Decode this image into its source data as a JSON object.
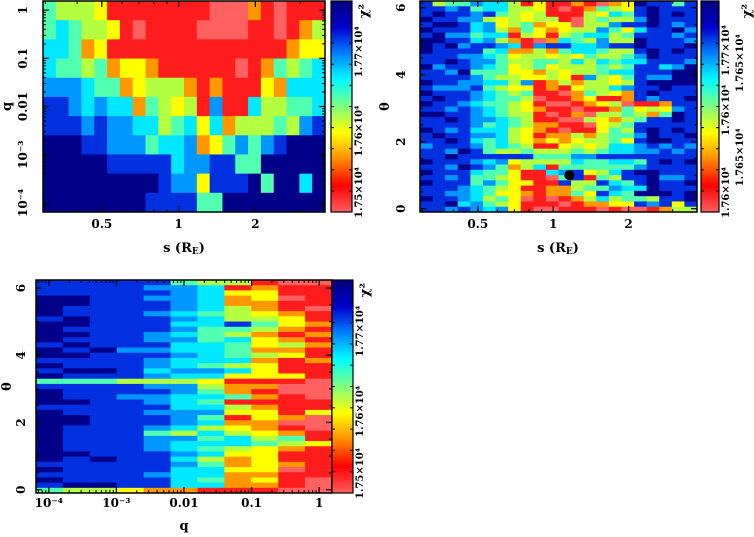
{
  "colormap": [
    "#ff6060",
    "#ff1c1c",
    "#ff9800",
    "#ffff00",
    "#b4ff40",
    "#50ffb0",
    "#00e8ff",
    "#0098ff",
    "#0030e0",
    "#000088"
  ],
  "colorbar_gradient": [
    "#ff6060",
    "#ff0000",
    "#ff8c00",
    "#ffff00",
    "#80ff80",
    "#00ffff",
    "#0080ff",
    "#0000cc",
    "#00007f"
  ],
  "chart_data": [
    {
      "type": "heatmap",
      "xlabel": {
        "text": "s (R",
        "sub": "E",
        "end": ")"
      },
      "ylabel": "q",
      "x_scale": "log",
      "y_scale": "log",
      "xlim": [
        0.294,
        3.75
      ],
      "ylim": [
        6.46e-05,
        1.55
      ],
      "x_ticks": [
        {
          "value": 0.5,
          "label": "0.5"
        },
        {
          "value": 1,
          "label": "1"
        },
        {
          "value": 2,
          "label": "2"
        }
      ],
      "y_ticks": [
        {
          "value": 1,
          "label": "1"
        },
        {
          "value": 0.1,
          "label": "0.1"
        },
        {
          "value": 0.01,
          "label": "0.01"
        },
        {
          "value": 0.001,
          "label": "10⁻³"
        },
        {
          "value": 0.0001,
          "label": "10⁻⁴"
        }
      ],
      "colorbar": {
        "label": "χ²",
        "zlim": [
          17498,
          17764
        ],
        "ticks": [
          {
            "value": 17500,
            "label": "1.75×10⁴"
          },
          {
            "value": 17600,
            "label": "1.76×10⁴"
          },
          {
            "value": 17700,
            "label": "1.77×10⁴"
          }
        ]
      },
      "z_levels": [
        "5444311111111000210111",
        "5654431011110000110124",
        "6652311111111111111233",
        "6554523321111110125456",
        "7776552344421211132666",
        "8876766254341711644556",
        "8887877664563624445478",
        "9998877756672357578999",
        "9999988888677885599999",
        "9999999998773888959969",
        "9999999988885599999999"
      ]
    },
    {
      "type": "heatmap",
      "xlabel": {
        "text": "s (R",
        "sub": "E",
        "end": ")"
      },
      "ylabel": "θ",
      "x_scale": "log",
      "y_scale": "linear",
      "xlim": [
        0.294,
        3.75
      ],
      "ylim": [
        -0.1,
        6.2
      ],
      "x_ticks": [
        {
          "value": 0.5,
          "label": "0.5"
        },
        {
          "value": 1,
          "label": "1"
        },
        {
          "value": 2,
          "label": "2"
        }
      ],
      "y_ticks": [
        {
          "value": 0,
          "label": "0"
        },
        {
          "value": 2,
          "label": "2"
        },
        {
          "value": 4,
          "label": "4"
        },
        {
          "value": 6,
          "label": "6"
        }
      ],
      "marker": {
        "x": 1.16,
        "y": 1.0
      },
      "colorbar": {
        "label": "χ²",
        "zlim": [
          17596,
          17708
        ],
        "ticks": [
          {
            "value": 17600,
            "label": "1.76×10⁴"
          },
          {
            "value": 17625,
            "label": "1.765×10⁴"
          },
          {
            "value": 17650,
            "label": "1.76×10⁴"
          },
          {
            "value": 17675,
            "label": "1.765×10⁴"
          },
          {
            "value": 17700,
            "label": "1.77×10⁴"
          }
        ]
      },
      "z_levels": [
        "8455766413112102398858",
        "8878566443101254389888",
        "8988785434111436589898",
        "9887743434410454479888",
        "8998673452330447889878",
        "9888674253234475368897",
        "8977566143145664588878",
        "9988674210265474498887",
        "9897887617886678898889",
        "9888856224256654489898",
        "8887765344343544579888",
        "8898775445546465668887",
        "9788765345344454588679",
        "8879555332434456688899",
        "8888754433431743587799",
        "9887766471242443489999",
        "8777854331213446788988",
        "9888765451102543289888",
        "8988765540112311287889",
        "9887655431001234011288",
        "8878765432110112534378",
        "9988765441012044542598",
        "8898776541100432458898",
        "8888756542211034588888",
        "9878666432101135489898",
        "8988776431224245579889",
        "8898656432323445389988",
        "7888756541134346678787",
        "8879854454445456677878",
        "8898888885557788888888",
        "9888767344446556658989",
        "8879875246155555578888",
        "9888655311678346899888",
        "8878554311058154889778",
        "9888575331184486589889",
        "8887654311224557669888",
        "8877653321225386599989",
        "9887645301012464554889",
        "8896754311101223387838",
        "8878767310011101001244"
      ]
    },
    {
      "type": "heatmap",
      "xlabel": {
        "text": "q",
        "sub": "",
        "end": ""
      },
      "ylabel": "θ",
      "x_scale": "log",
      "y_scale": "linear",
      "xlim": [
        6.46e-05,
        1.55
      ],
      "ylim": [
        -0.1,
        6.24
      ],
      "x_ticks": [
        {
          "value": 0.0001,
          "label": "10⁻⁴"
        },
        {
          "value": 0.001,
          "label": "10⁻³"
        },
        {
          "value": 0.01,
          "label": "0.01"
        },
        {
          "value": 0.1,
          "label": "0.1"
        },
        {
          "value": 1,
          "label": "1"
        }
      ],
      "y_ticks": [
        {
          "value": 0,
          "label": "0"
        },
        {
          "value": 2,
          "label": "2"
        },
        {
          "value": 4,
          "label": "4"
        },
        {
          "value": 6,
          "label": "6"
        }
      ],
      "colorbar": {
        "label": "χ²",
        "zlim": [
          17498,
          17764
        ],
        "ticks": [
          {
            "value": 17500,
            "label": "1.75×10⁴"
          },
          {
            "value": 17600,
            "label": "1.76×10⁴"
          },
          {
            "value": 17700,
            "label": "1.77×10⁴"
          }
        ]
      },
      "z_levels": [
        "88888544100",
        "88887761211",
        "88888763311",
        "99887762301",
        "99888762211",
        "98888764210",
        "98887654321",
        "89888764431",
        "99888668532",
        "98888755421",
        "99887654212",
        "98887756321",
        "89888665342",
        "98977665221",
        "99888765431",
        "88887666212",
        "98887654311",
        "89986776311",
        "98887663331",
        "55544431110",
        "88887742200",
        "98888752100",
        "98877665210",
        "99887651111",
        "88888664211",
        "98887773313",
        "99888751320",
        "99888762200",
        "98887643210",
        "98885464321",
        "98887756451",
        "98887666543",
        "98887654321",
        "99888763311",
        "98988642311",
        "88888752321",
        "98888663301",
        "88887662211",
        "98888652310",
        "89988662210",
        "54432211100"
      ]
    }
  ]
}
